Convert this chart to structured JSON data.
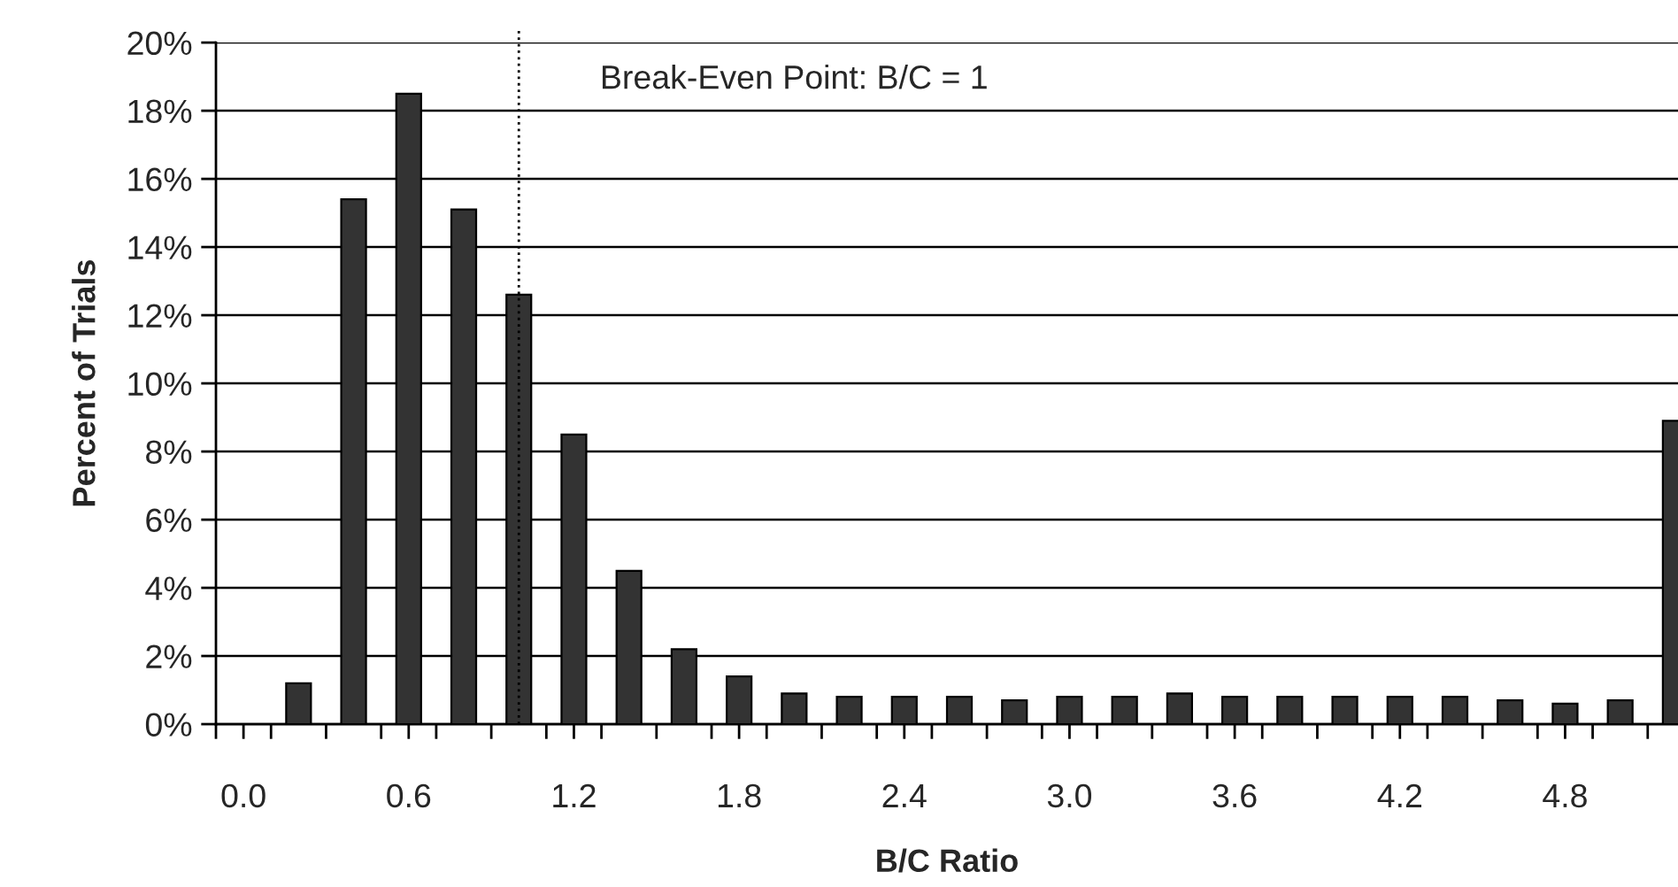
{
  "chart_data": {
    "type": "bar",
    "xlabel": "B/C Ratio",
    "ylabel": "Percent of Trials",
    "x": [
      0.2,
      0.4,
      0.6,
      0.8,
      1.0,
      1.2,
      1.4,
      1.6,
      1.8,
      2.0,
      2.2,
      2.4,
      2.6,
      2.8,
      3.0,
      3.2,
      3.4,
      3.6,
      3.8,
      4.0,
      4.2,
      4.4,
      4.6,
      4.8,
      5.0,
      5.2
    ],
    "values": [
      1.2,
      15.4,
      18.5,
      15.1,
      12.6,
      8.5,
      4.5,
      2.2,
      1.4,
      0.9,
      0.8,
      0.8,
      0.8,
      0.7,
      0.8,
      0.8,
      0.9,
      0.8,
      0.8,
      0.8,
      0.8,
      0.8,
      0.7,
      0.6,
      0.7,
      8.9
    ],
    "color": "#333333",
    "xlim": [
      -0.1,
      5.21
    ],
    "ylim": [
      0,
      20
    ],
    "xticks": [
      {
        "value": -0.1,
        "label": null
      },
      {
        "value": 0.0,
        "label": "0.0"
      },
      {
        "value": 0.1,
        "label": null
      },
      {
        "value": 0.3,
        "label": null
      },
      {
        "value": 0.5,
        "label": null
      },
      {
        "value": 0.6,
        "label": "0.6"
      },
      {
        "value": 0.7,
        "label": null
      },
      {
        "value": 0.9,
        "label": null
      },
      {
        "value": 1.1,
        "label": null
      },
      {
        "value": 1.2,
        "label": "1.2"
      },
      {
        "value": 1.3,
        "label": null
      },
      {
        "value": 1.5,
        "label": null
      },
      {
        "value": 1.7,
        "label": null
      },
      {
        "value": 1.8,
        "label": "1.8"
      },
      {
        "value": 1.9,
        "label": null
      },
      {
        "value": 2.1,
        "label": null
      },
      {
        "value": 2.3,
        "label": null
      },
      {
        "value": 2.4,
        "label": "2.4"
      },
      {
        "value": 2.5,
        "label": null
      },
      {
        "value": 2.7,
        "label": null
      },
      {
        "value": 2.9,
        "label": null
      },
      {
        "value": 3.0,
        "label": "3.0"
      },
      {
        "value": 3.1,
        "label": null
      },
      {
        "value": 3.3,
        "label": null
      },
      {
        "value": 3.5,
        "label": null
      },
      {
        "value": 3.6,
        "label": "3.6"
      },
      {
        "value": 3.7,
        "label": null
      },
      {
        "value": 3.9,
        "label": null
      },
      {
        "value": 4.1,
        "label": null
      },
      {
        "value": 4.2,
        "label": "4.2"
      },
      {
        "value": 4.3,
        "label": null
      },
      {
        "value": 4.5,
        "label": null
      },
      {
        "value": 4.7,
        "label": null
      },
      {
        "value": 4.8,
        "label": "4.8"
      },
      {
        "value": 4.9,
        "label": null
      },
      {
        "value": 5.1,
        "label": null
      }
    ],
    "yticks": [
      {
        "value": 0,
        "label": "0%"
      },
      {
        "value": 2,
        "label": "2%"
      },
      {
        "value": 4,
        "label": "4%"
      },
      {
        "value": 6,
        "label": "6%"
      },
      {
        "value": 8,
        "label": "8%"
      },
      {
        "value": 10,
        "label": "10%"
      },
      {
        "value": 12,
        "label": "12%"
      },
      {
        "value": 14,
        "label": "14%"
      },
      {
        "value": 16,
        "label": "16%"
      },
      {
        "value": 18,
        "label": "18%"
      },
      {
        "value": 20,
        "label": "20%"
      }
    ],
    "grid": "y",
    "ref_lines": [
      {
        "axis": "x",
        "value": 1.0,
        "label": "Break-Even Point: B/C = 1",
        "color": "#000000",
        "line_style": "dotted"
      }
    ]
  }
}
